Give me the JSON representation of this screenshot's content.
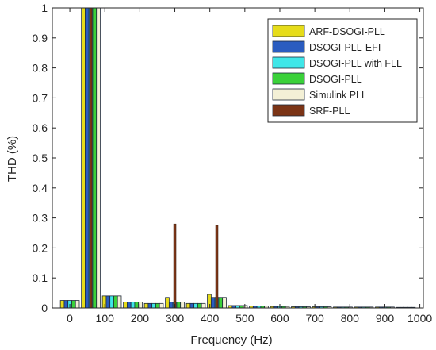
{
  "chart_data": {
    "type": "bar",
    "xlabel": "Frequency (Hz)",
    "ylabel": "THD (%)",
    "xlim": [
      -50,
      1010
    ],
    "ylim": [
      0,
      1
    ],
    "xticks": [
      0,
      100,
      200,
      300,
      400,
      500,
      600,
      700,
      800,
      900,
      1000
    ],
    "xtick_labels": [
      "0",
      "100",
      "200",
      "300",
      "400",
      "500",
      "600",
      "700",
      "800",
      "900",
      "1000"
    ],
    "yticks": [
      0,
      0.1,
      0.2,
      0.3,
      0.4,
      0.5,
      0.6,
      0.7,
      0.8,
      0.9,
      1
    ],
    "ytick_labels": [
      "0",
      "0.1",
      "0.2",
      "0.3",
      "0.4",
      "0.5",
      "0.6",
      "0.7",
      "0.8",
      "0.9",
      "1"
    ],
    "legend_position": "top-right",
    "grid": false,
    "bin_width_hz": 60,
    "categories": [
      0,
      60,
      120,
      180,
      240,
      300,
      360,
      420,
      480,
      540,
      600,
      660,
      720,
      780,
      840,
      900,
      960
    ],
    "series": [
      {
        "name": "ARF-DSOGI-PLL",
        "color": "#e6dc1a",
        "values": [
          0.025,
          1,
          0.04,
          0.02,
          0.015,
          0.035,
          0.015,
          0.045,
          0.008,
          0.006,
          0.005,
          0.004,
          0.004,
          0.003,
          0.003,
          0.003,
          0.002
        ]
      },
      {
        "name": "DSOGI-PLL-EFI",
        "color": "#2a5cc0",
        "values": [
          0.025,
          1,
          0.04,
          0.02,
          0.015,
          0.02,
          0.015,
          0.035,
          0.008,
          0.006,
          0.005,
          0.004,
          0.004,
          0.003,
          0.003,
          0.003,
          0.002
        ]
      },
      {
        "name": "DSOGI-PLL with FLL",
        "color": "#3fe6e8",
        "values": [
          0.025,
          1,
          0.04,
          0.02,
          0.015,
          0.02,
          0.015,
          0.035,
          0.008,
          0.006,
          0.005,
          0.004,
          0.004,
          0.003,
          0.003,
          0.003,
          0.002
        ]
      },
      {
        "name": "DSOGI-PLL",
        "color": "#3ad13a",
        "values": [
          0.025,
          1,
          0.04,
          0.02,
          0.015,
          0.02,
          0.015,
          0.035,
          0.008,
          0.006,
          0.005,
          0.004,
          0.004,
          0.003,
          0.003,
          0.003,
          0.002
        ]
      },
      {
        "name": "Simulink PLL",
        "color": "#f3f0d6",
        "values": [
          0.025,
          1,
          0.04,
          0.02,
          0.015,
          0.02,
          0.015,
          0.035,
          0.008,
          0.006,
          0.005,
          0.004,
          0.004,
          0.003,
          0.003,
          0.003,
          0.002
        ]
      },
      {
        "name": "SRF-PLL",
        "color": "#7b3416",
        "values": [
          0.0,
          1,
          0.0,
          0.0,
          0.0,
          0.28,
          0.0,
          0.275,
          0.0,
          0.0,
          0.0,
          0.0,
          0.0,
          0.0,
          0.0,
          0.0,
          0.0
        ]
      }
    ]
  }
}
